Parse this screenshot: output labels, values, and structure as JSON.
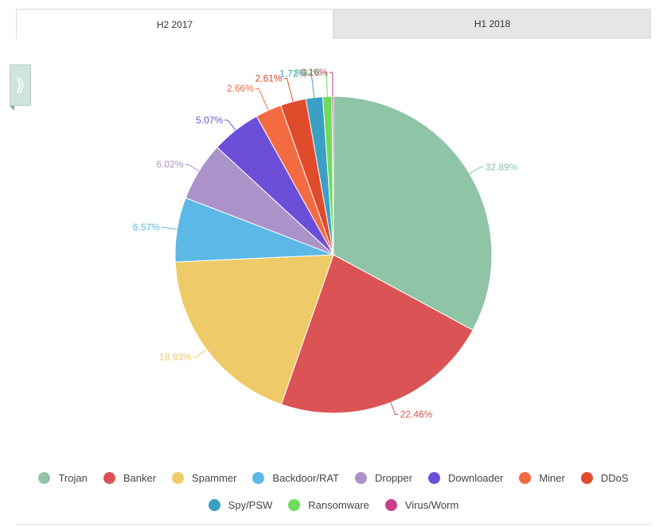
{
  "tabs": [
    {
      "label": "H2 2017",
      "active": true
    },
    {
      "label": "H1 2018",
      "active": false
    }
  ],
  "side_toggle": {
    "icon": "double-chevron-right-icon",
    "glyph": "⟫"
  },
  "chart_data": {
    "type": "pie",
    "categories": [
      "Trojan",
      "Banker",
      "Spammer",
      "Backdoor/RAT",
      "Dropper",
      "Downloader",
      "Miner",
      "DDoS",
      "Spy/PSW",
      "Ransomware",
      "Virus/Worm"
    ],
    "values": [
      32.89,
      22.46,
      18.93,
      6.57,
      6.02,
      5.07,
      2.66,
      2.61,
      1.72,
      0.92,
      0.16
    ],
    "labels": [
      "32.89%",
      "22.46%",
      "18.93%",
      "6.57%",
      "6.02%",
      "5.07%",
      "2.66%",
      "2.61%",
      "1.72%",
      "0.92%",
      "0.16%"
    ],
    "colors": [
      "#90c4a7",
      "#dc5356",
      "#eecb68",
      "#5cb8e6",
      "#ab93c9",
      "#6c4fd8",
      "#f46b42",
      "#e04b2c",
      "#3c9fc4",
      "#6ddc5a",
      "#c83f8a"
    ],
    "legend_position": "bottom"
  }
}
